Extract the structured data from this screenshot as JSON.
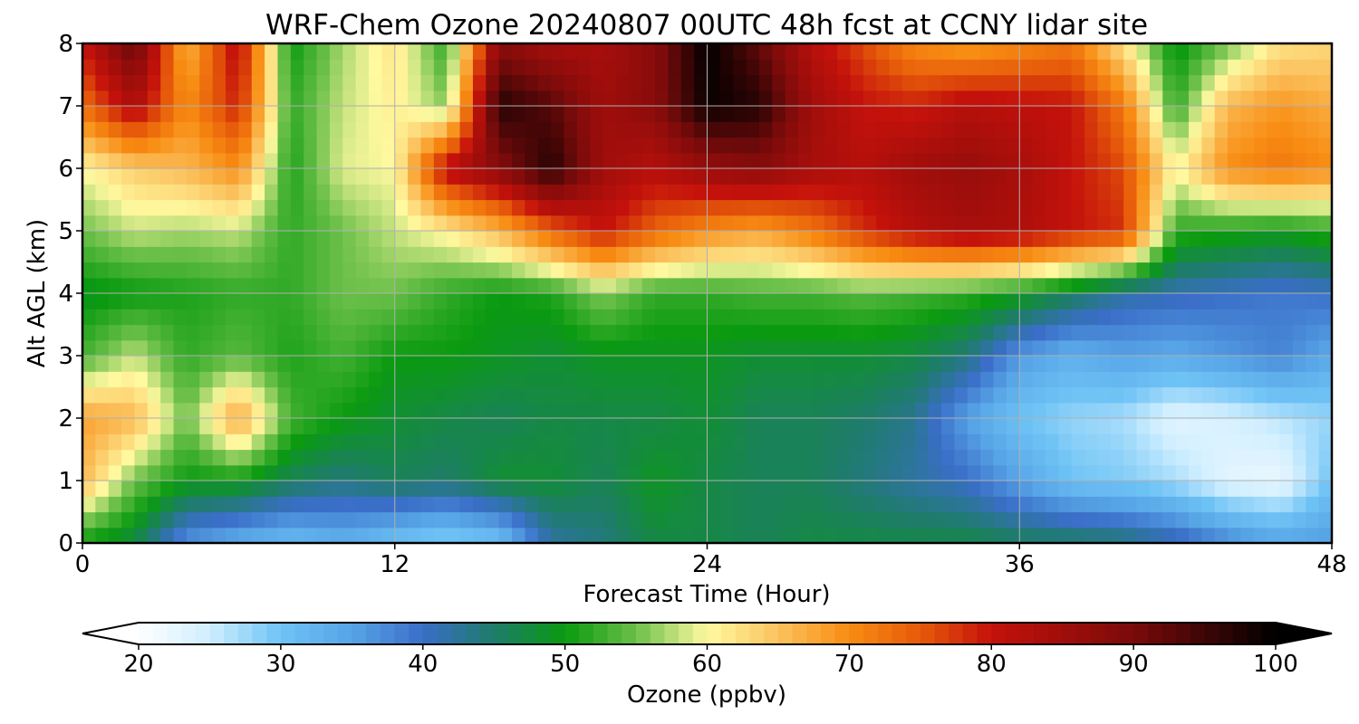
{
  "chart_data": {
    "type": "heatmap",
    "title": "WRF-Chem Ozone  20240807 00UTC 48h fcst at CCNY lidar site",
    "xlabel": "Forecast Time (Hour)",
    "ylabel": "Alt AGL (km)",
    "xlim": [
      0,
      48
    ],
    "ylim": [
      0,
      8
    ],
    "x_ticks": [
      0,
      12,
      24,
      36,
      48
    ],
    "y_ticks": [
      0,
      1,
      2,
      3,
      4,
      5,
      6,
      7,
      8
    ],
    "grid": true,
    "x": [
      0,
      2,
      4,
      6,
      8,
      10,
      12,
      14,
      16,
      18,
      20,
      22,
      24,
      26,
      28,
      30,
      32,
      34,
      36,
      38,
      40,
      42,
      44,
      46,
      48
    ],
    "y": [
      0,
      1,
      2,
      3,
      4,
      5,
      6,
      7,
      8
    ],
    "z": [
      [
        50,
        47,
        36,
        33,
        31,
        33,
        30,
        28,
        30,
        42,
        44,
        47,
        47,
        46,
        47,
        47,
        47,
        47,
        46,
        46,
        45,
        42,
        38,
        35,
        36
      ],
      [
        66,
        55,
        50,
        50,
        46,
        44,
        46,
        45,
        48,
        48,
        46,
        49,
        47,
        46,
        46,
        44,
        42,
        40,
        35,
        30,
        29,
        27,
        23,
        22,
        30
      ],
      [
        68,
        66,
        55,
        68,
        53,
        50,
        48,
        47,
        46,
        47,
        47,
        47,
        48,
        46,
        46,
        45,
        43,
        35,
        30,
        28,
        27,
        23,
        24,
        26,
        28
      ],
      [
        53,
        58,
        52,
        54,
        51,
        53,
        50,
        50,
        49,
        48,
        49,
        49,
        49,
        48,
        48,
        48,
        47,
        44,
        36,
        33,
        35,
        34,
        36,
        38,
        34
      ],
      [
        49,
        50,
        51,
        52,
        52,
        55,
        55,
        52,
        50,
        51,
        56,
        52,
        52,
        53,
        53,
        54,
        53,
        52,
        50,
        46,
        42,
        41,
        40,
        39,
        40
      ],
      [
        55,
        58,
        57,
        58,
        52,
        55,
        58,
        61,
        66,
        74,
        80,
        74,
        70,
        68,
        72,
        78,
        82,
        84,
        83,
        80,
        78,
        52,
        51,
        50,
        52
      ],
      [
        60,
        64,
        66,
        70,
        51,
        59,
        60,
        82,
        88,
        97,
        85,
        82,
        86,
        88,
        84,
        82,
        85,
        86,
        84,
        80,
        76,
        60,
        70,
        72,
        70
      ],
      [
        73,
        83,
        70,
        79,
        52,
        58,
        61,
        56,
        97,
        93,
        85,
        88,
        99,
        97,
        85,
        80,
        79,
        82,
        81,
        80,
        72,
        52,
        66,
        69,
        67
      ],
      [
        80,
        92,
        66,
        82,
        50,
        57,
        62,
        52,
        88,
        84,
        84,
        88,
        100,
        92,
        82,
        76,
        70,
        68,
        70,
        72,
        62,
        49,
        55,
        62,
        63
      ]
    ],
    "colorbar": {
      "label": "Ozone  (ppbv)",
      "min": 20,
      "max": 100,
      "ticks": [
        20,
        30,
        40,
        50,
        60,
        70,
        80,
        90,
        100
      ],
      "extend": "both"
    },
    "colormap": [
      [
        20,
        "#ffffff"
      ],
      [
        25,
        "#cfeeff"
      ],
      [
        30,
        "#6ec3f5"
      ],
      [
        35,
        "#57a4e6"
      ],
      [
        40,
        "#3a6ec8"
      ],
      [
        45,
        "#1e7c6a"
      ],
      [
        50,
        "#0a9a10"
      ],
      [
        55,
        "#6cc04a"
      ],
      [
        60,
        "#fff9a0"
      ],
      [
        65,
        "#fbc25e"
      ],
      [
        70,
        "#f88c12"
      ],
      [
        75,
        "#e65a0a"
      ],
      [
        80,
        "#c4110b"
      ],
      [
        90,
        "#7a0b0b"
      ],
      [
        100,
        "#000000"
      ]
    ]
  }
}
